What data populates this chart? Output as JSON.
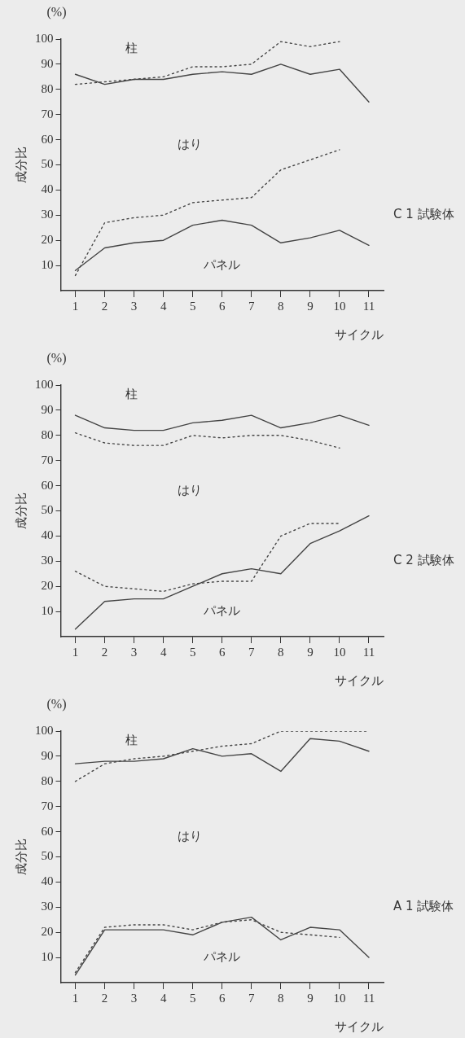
{
  "chart_data": [
    {
      "type": "line",
      "ylabel": "成分比",
      "xlabel": "サイクル",
      "categories": [
        "1",
        "2",
        "3",
        "4",
        "5",
        "6",
        "7",
        "8",
        "9",
        "10",
        "11"
      ],
      "ylim": [
        0,
        100
      ],
      "yticks": [
        10,
        20,
        30,
        40,
        50,
        60,
        70,
        80,
        90,
        100
      ],
      "grid": false,
      "legend": false,
      "marker": "none",
      "annotations": [
        "(%)",
        "C 1 試験体",
        "柱",
        "はり",
        "パネル"
      ],
      "series": [
        {
          "color": "#444444",
          "line_style": "solid",
          "values": [
            86,
            82,
            84,
            84,
            86,
            87,
            86,
            90,
            86,
            88,
            75
          ]
        },
        {
          "color": "#444444",
          "line_style": "dotted",
          "values": [
            82,
            83,
            84,
            85,
            89,
            89,
            90,
            99,
            97,
            99,
            null
          ]
        },
        {
          "color": "#444444",
          "line_style": "dotted",
          "values": [
            6,
            27,
            29,
            30,
            35,
            36,
            37,
            48,
            52,
            56,
            null
          ]
        },
        {
          "color": "#444444",
          "line_style": "solid",
          "values": [
            8,
            17,
            19,
            20,
            26,
            28,
            26,
            19,
            21,
            24,
            18
          ]
        }
      ]
    },
    {
      "type": "line",
      "ylabel": "成分比",
      "xlabel": "サイクル",
      "categories": [
        "1",
        "2",
        "3",
        "4",
        "5",
        "6",
        "7",
        "8",
        "9",
        "10",
        "11"
      ],
      "ylim": [
        0,
        100
      ],
      "yticks": [
        10,
        20,
        30,
        40,
        50,
        60,
        70,
        80,
        90,
        100
      ],
      "grid": false,
      "legend": false,
      "marker": "none",
      "annotations": [
        "(%)",
        "C 2 試験体",
        "柱",
        "はり",
        "パネル"
      ],
      "series": [
        {
          "color": "#444444",
          "line_style": "solid",
          "values": [
            88,
            83,
            82,
            82,
            85,
            86,
            88,
            83,
            85,
            88,
            84
          ]
        },
        {
          "color": "#444444",
          "line_style": "dotted",
          "values": [
            81,
            77,
            76,
            76,
            80,
            79,
            80,
            80,
            78,
            75,
            null
          ]
        },
        {
          "color": "#444444",
          "line_style": "dotted",
          "values": [
            26,
            20,
            19,
            18,
            21,
            22,
            22,
            40,
            45,
            45,
            null
          ]
        },
        {
          "color": "#444444",
          "line_style": "solid",
          "values": [
            3,
            14,
            15,
            15,
            20,
            25,
            27,
            25,
            37,
            42,
            48
          ]
        }
      ]
    },
    {
      "type": "line",
      "ylabel": "成分比",
      "xlabel": "サイクル",
      "categories": [
        "1",
        "2",
        "3",
        "4",
        "5",
        "6",
        "7",
        "8",
        "9",
        "10",
        "11"
      ],
      "ylim": [
        0,
        100
      ],
      "yticks": [
        10,
        20,
        30,
        40,
        50,
        60,
        70,
        80,
        90,
        100
      ],
      "grid": false,
      "legend": false,
      "marker": "none",
      "annotations": [
        "(%)",
        "A 1 試験体",
        "柱",
        "はり",
        "パネル"
      ],
      "series": [
        {
          "color": "#444444",
          "line_style": "solid",
          "values": [
            87,
            88,
            88,
            89,
            93,
            90,
            91,
            84,
            97,
            96,
            92
          ]
        },
        {
          "color": "#444444",
          "line_style": "dotted",
          "values": [
            80,
            87,
            89,
            90,
            92,
            94,
            95,
            100,
            100,
            100,
            100
          ]
        },
        {
          "color": "#444444",
          "line_style": "dotted",
          "values": [
            4,
            22,
            23,
            23,
            21,
            24,
            25,
            20,
            19,
            18,
            null
          ]
        },
        {
          "color": "#444444",
          "line_style": "solid",
          "values": [
            3,
            21,
            21,
            21,
            19,
            24,
            26,
            17,
            22,
            21,
            10
          ]
        }
      ]
    }
  ]
}
